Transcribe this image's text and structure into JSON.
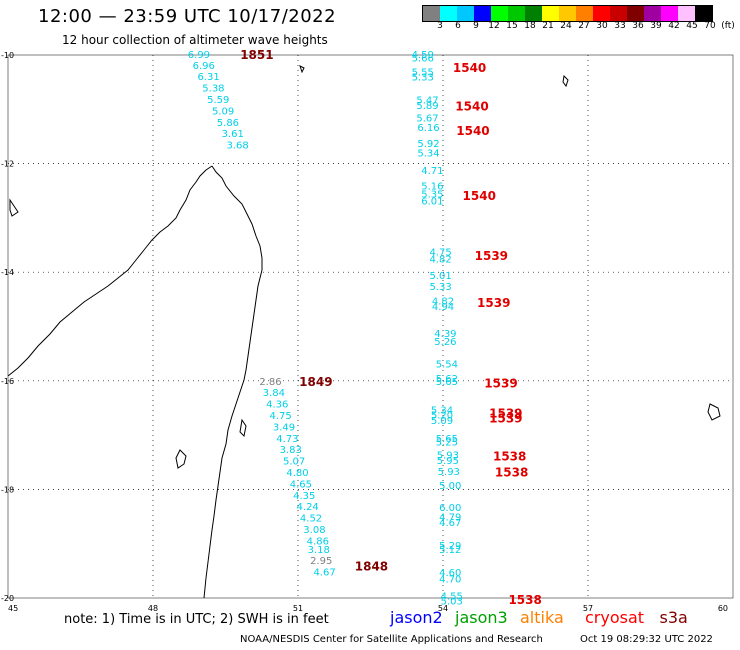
{
  "header": {
    "title": "12:00 — 23:59 UTC 10/17/2022",
    "subtitle": "12 hour collection of altimeter wave heights"
  },
  "colorbar": {
    "unit": "(ft)",
    "colors": [
      "#808080",
      "#00ffff",
      "#00c8ff",
      "#0000ff",
      "#00ff00",
      "#00c800",
      "#008000",
      "#ffff00",
      "#ffc800",
      "#ff8000",
      "#ff0000",
      "#c80000",
      "#800000",
      "#a000a0",
      "#ff00ff",
      "#ffc0ff",
      "#000000"
    ],
    "labels": [
      "3",
      "6",
      "9",
      "12",
      "15",
      "18",
      "21",
      "24",
      "27",
      "30",
      "33",
      "36",
      "39",
      "42",
      "45",
      "70",
      "(ft)"
    ]
  },
  "axes": {
    "lon_ticks": [
      "45",
      "48",
      "51",
      "54",
      "57",
      "60"
    ],
    "lat_ticks": [
      "-10",
      "-12",
      "-14",
      "-16",
      "-18",
      "-20"
    ]
  },
  "tracks": [
    {
      "name": "west",
      "color": "#00d0e8",
      "points": [
        {
          "lat": -9.98,
          "lon": 48.95,
          "label": "6.99"
        },
        {
          "lat": -10.18,
          "lon": 49.05,
          "label": "6.96"
        },
        {
          "lat": -10.39,
          "lon": 49.15,
          "label": "6.31"
        },
        {
          "lat": -10.6,
          "lon": 49.25,
          "label": "5.38"
        },
        {
          "lat": -10.81,
          "lon": 49.35,
          "label": "5.59"
        },
        {
          "lat": -11.02,
          "lon": 49.45,
          "label": "5.09"
        },
        {
          "lat": -11.23,
          "lon": 49.55,
          "label": "5.86"
        },
        {
          "lat": -11.44,
          "lon": 49.65,
          "label": "3.61"
        },
        {
          "lat": -11.65,
          "lon": 49.75,
          "label": "3.68"
        },
        {
          "lat": -16.0,
          "lon": 50.43,
          "label": "2.86",
          "color": "#808080"
        },
        {
          "lat": -16.21,
          "lon": 50.5,
          "label": "3.84"
        },
        {
          "lat": -16.42,
          "lon": 50.57,
          "label": "4.36"
        },
        {
          "lat": -16.63,
          "lon": 50.64,
          "label": "4.75"
        },
        {
          "lat": -16.84,
          "lon": 50.71,
          "label": "3.49"
        },
        {
          "lat": -17.05,
          "lon": 50.78,
          "label": "4.73"
        },
        {
          "lat": -17.26,
          "lon": 50.85,
          "label": "3.83"
        },
        {
          "lat": -17.47,
          "lon": 50.92,
          "label": "5.07"
        },
        {
          "lat": -17.68,
          "lon": 50.99,
          "label": "4.80"
        },
        {
          "lat": -17.89,
          "lon": 51.06,
          "label": "4.65"
        },
        {
          "lat": -18.1,
          "lon": 51.13,
          "label": "4.35"
        },
        {
          "lat": -18.31,
          "lon": 51.2,
          "label": "4.24"
        },
        {
          "lat": -18.52,
          "lon": 51.27,
          "label": "4.52"
        },
        {
          "lat": -18.73,
          "lon": 51.34,
          "label": "3.08"
        },
        {
          "lat": -18.94,
          "lon": 51.41,
          "label": "4.86"
        },
        {
          "lat": -19.1,
          "lon": 51.43,
          "label": "3.18"
        },
        {
          "lat": -19.3,
          "lon": 51.48,
          "label": "2.95",
          "color": "#808080"
        },
        {
          "lat": -19.51,
          "lon": 51.55,
          "label": "4.67"
        }
      ]
    },
    {
      "name": "east",
      "color": "#00d0e8",
      "points": [
        {
          "lat": -9.98,
          "lon": 53.58,
          "label": "4.59"
        },
        {
          "lat": -10.05,
          "lon": 53.58,
          "label": "5.66"
        },
        {
          "lat": -10.3,
          "lon": 53.58,
          "label": "5.55"
        },
        {
          "lat": -10.4,
          "lon": 53.58,
          "label": "5.33"
        },
        {
          "lat": -10.82,
          "lon": 53.68,
          "label": "5.47"
        },
        {
          "lat": -10.92,
          "lon": 53.68,
          "label": "5.89"
        },
        {
          "lat": -11.15,
          "lon": 53.68,
          "label": "5.67"
        },
        {
          "lat": -11.33,
          "lon": 53.7,
          "label": "6.16"
        },
        {
          "lat": -11.62,
          "lon": 53.7,
          "label": "5.92"
        },
        {
          "lat": -11.8,
          "lon": 53.7,
          "label": "5.34"
        },
        {
          "lat": -12.12,
          "lon": 53.78,
          "label": "4.71"
        },
        {
          "lat": -12.4,
          "lon": 53.78,
          "label": "5.16"
        },
        {
          "lat": -12.55,
          "lon": 53.78,
          "label": "5.35"
        },
        {
          "lat": -12.68,
          "lon": 53.78,
          "label": "6.01"
        },
        {
          "lat": -13.62,
          "lon": 53.95,
          "label": "4.75"
        },
        {
          "lat": -13.75,
          "lon": 53.95,
          "label": "4.82"
        },
        {
          "lat": -14.05,
          "lon": 53.95,
          "label": "5.01"
        },
        {
          "lat": -14.25,
          "lon": 53.95,
          "label": "5.33"
        },
        {
          "lat": -14.52,
          "lon": 54.0,
          "label": "4.82"
        },
        {
          "lat": -14.62,
          "lon": 54.0,
          "label": "4.94"
        },
        {
          "lat": -15.12,
          "lon": 54.05,
          "label": "4.39"
        },
        {
          "lat": -15.27,
          "lon": 54.05,
          "label": "5.26"
        },
        {
          "lat": -15.68,
          "lon": 54.08,
          "label": "5.54"
        },
        {
          "lat": -15.95,
          "lon": 54.08,
          "label": "5.62"
        },
        {
          "lat": -16.0,
          "lon": 54.08,
          "label": "5.65"
        },
        {
          "lat": -16.53,
          "lon": 53.98,
          "label": "5.34"
        },
        {
          "lat": -16.62,
          "lon": 53.98,
          "label": "5.20"
        },
        {
          "lat": -16.72,
          "lon": 53.98,
          "label": "5.09"
        },
        {
          "lat": -17.05,
          "lon": 54.08,
          "label": "5.65"
        },
        {
          "lat": -17.12,
          "lon": 54.08,
          "label": "5.25"
        },
        {
          "lat": -17.36,
          "lon": 54.1,
          "label": "5.93"
        },
        {
          "lat": -17.46,
          "lon": 54.1,
          "label": "5.95"
        },
        {
          "lat": -17.66,
          "lon": 54.12,
          "label": "5.93"
        },
        {
          "lat": -17.92,
          "lon": 54.15,
          "label": "5.00"
        },
        {
          "lat": -18.32,
          "lon": 54.15,
          "label": "6.00"
        },
        {
          "lat": -18.5,
          "lon": 54.15,
          "label": "4.79"
        },
        {
          "lat": -18.6,
          "lon": 54.15,
          "label": "4.67"
        },
        {
          "lat": -19.02,
          "lon": 54.15,
          "label": "5.29"
        },
        {
          "lat": -19.1,
          "lon": 54.15,
          "label": "5.12"
        },
        {
          "lat": -19.52,
          "lon": 54.15,
          "label": "4.60"
        },
        {
          "lat": -19.64,
          "lon": 54.15,
          "label": "4.70"
        },
        {
          "lat": -19.95,
          "lon": 54.18,
          "label": "4.55"
        },
        {
          "lat": -20.05,
          "lon": 54.18,
          "label": "5.03"
        }
      ]
    }
  ],
  "time_labels": [
    {
      "lat": -9.98,
      "lon": 50.15,
      "label": "1851",
      "color": "#800000"
    },
    {
      "lat": -16.0,
      "lon": 51.37,
      "label": "1849",
      "color": "#800000"
    },
    {
      "lat": -19.4,
      "lon": 52.52,
      "label": "1848",
      "color": "#800000"
    },
    {
      "lat": -10.22,
      "lon": 54.55,
      "label": "1540",
      "color": "#e00000"
    },
    {
      "lat": -10.93,
      "lon": 54.6,
      "label": "1540",
      "color": "#e00000"
    },
    {
      "lat": -11.38,
      "lon": 54.62,
      "label": "1540",
      "color": "#e00000"
    },
    {
      "lat": -12.58,
      "lon": 54.75,
      "label": "1540",
      "color": "#e00000"
    },
    {
      "lat": -13.68,
      "lon": 55.0,
      "label": "1539",
      "color": "#e00000"
    },
    {
      "lat": -14.55,
      "lon": 55.05,
      "label": "1539",
      "color": "#e00000"
    },
    {
      "lat": -16.03,
      "lon": 55.2,
      "label": "1539",
      "color": "#e00000"
    },
    {
      "lat": -16.58,
      "lon": 55.3,
      "label": "1539",
      "color": "#e00000"
    },
    {
      "lat": -16.68,
      "lon": 55.3,
      "label": "1539",
      "color": "#e00000"
    },
    {
      "lat": -17.38,
      "lon": 55.38,
      "label": "1538",
      "color": "#e00000"
    },
    {
      "lat": -17.67,
      "lon": 55.42,
      "label": "1538",
      "color": "#e00000"
    },
    {
      "lat": -20.02,
      "lon": 55.7,
      "label": "1538",
      "color": "#e00000"
    }
  ],
  "note": "note: 1) Time is in UTC; 2) SWH is in feet",
  "legend": [
    {
      "label": "jason2",
      "color": "#0000ff"
    },
    {
      "label": "jason3",
      "color": "#00a000"
    },
    {
      "label": "altika",
      "color": "#ff8000"
    },
    {
      "label": "cryosat",
      "color": "#ff0000"
    },
    {
      "label": "s3a",
      "color": "#800000"
    }
  ],
  "credit": "NOAA/NESDIS Center for Satellite Applications and Research",
  "timestamp": "Oct 19 08:29:32 UTC 2022"
}
